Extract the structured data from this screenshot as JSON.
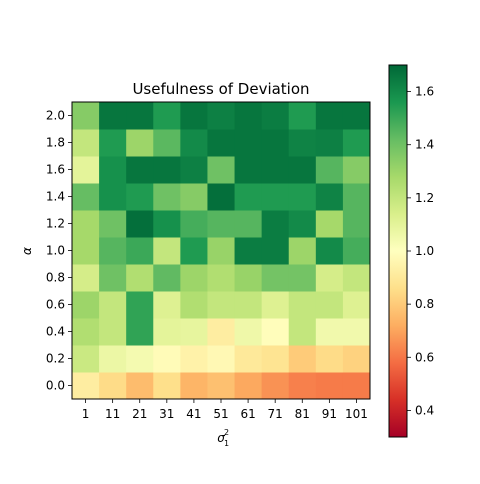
{
  "chart_data": {
    "type": "heatmap",
    "title": "Usefulness of Deviation",
    "xlabel_main": "σ",
    "xlabel_sup": "2",
    "xlabel_sub": "1",
    "ylabel": "α",
    "x_categories": [
      "1",
      "11",
      "21",
      "31",
      "41",
      "51",
      "61",
      "71",
      "81",
      "91",
      "101"
    ],
    "y_categories": [
      "0.0",
      "0.2",
      "0.4",
      "0.6",
      "0.8",
      "1.0",
      "1.2",
      "1.4",
      "1.6",
      "1.8",
      "2.0"
    ],
    "y_order": "0.0 at bottom, 2.0 at top",
    "colormap": "RdYlGn",
    "vmin": 0.3,
    "vmax": 1.7,
    "colorbar_ticks": [
      "0.4",
      "0.6",
      "0.8",
      "1.0",
      "1.2",
      "1.4",
      "1.6"
    ],
    "values": [
      [
        0.92,
        0.85,
        0.76,
        0.86,
        0.74,
        0.77,
        0.71,
        0.66,
        0.62,
        0.61,
        0.61
      ],
      [
        1.18,
        1.07,
        1.04,
        0.98,
        0.94,
        0.97,
        0.9,
        0.88,
        0.8,
        0.85,
        0.82
      ],
      [
        1.25,
        1.2,
        1.52,
        1.1,
        1.09,
        0.92,
        1.06,
        0.99,
        1.2,
        1.05,
        1.05
      ],
      [
        1.3,
        1.2,
        1.52,
        1.12,
        1.25,
        1.2,
        1.2,
        1.12,
        1.2,
        1.2,
        1.12
      ],
      [
        1.15,
        1.4,
        1.25,
        1.43,
        1.3,
        1.25,
        1.31,
        1.39,
        1.39,
        1.15,
        1.2
      ],
      [
        1.28,
        1.45,
        1.5,
        1.2,
        1.55,
        1.31,
        1.64,
        1.64,
        1.3,
        1.6,
        1.48
      ],
      [
        1.28,
        1.4,
        1.68,
        1.58,
        1.48,
        1.45,
        1.45,
        1.64,
        1.6,
        1.28,
        1.45
      ],
      [
        1.42,
        1.58,
        1.55,
        1.4,
        1.35,
        1.68,
        1.55,
        1.55,
        1.55,
        1.62,
        1.45
      ],
      [
        1.1,
        1.58,
        1.66,
        1.66,
        1.63,
        1.4,
        1.66,
        1.66,
        1.66,
        1.45,
        1.35
      ],
      [
        1.2,
        1.55,
        1.3,
        1.44,
        1.6,
        1.66,
        1.66,
        1.66,
        1.62,
        1.63,
        1.55
      ],
      [
        1.35,
        1.66,
        1.66,
        1.55,
        1.66,
        1.63,
        1.66,
        1.64,
        1.55,
        1.66,
        1.66
      ]
    ]
  }
}
